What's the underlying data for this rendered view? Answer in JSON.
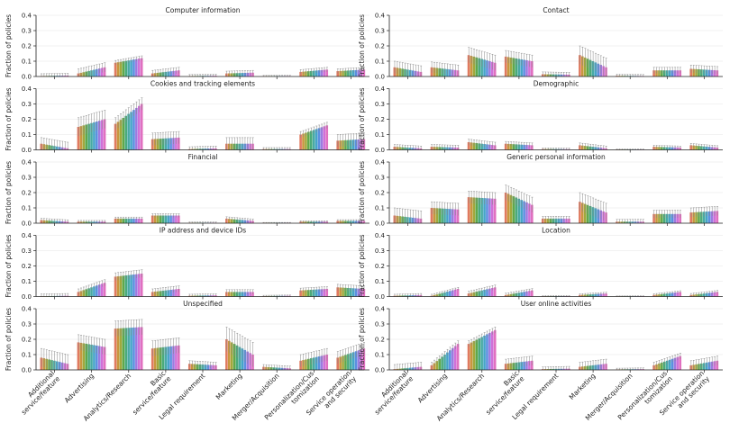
{
  "figure": {
    "ylabel": "Fraction of policies",
    "ylim": [
      0,
      0.4
    ],
    "yticks": [
      "0.0",
      "0.1",
      "0.2",
      "0.3",
      "0.4"
    ],
    "categories": [
      "Additional service/feature",
      "Advertising",
      "Analytics/Research",
      "Basic service/feature",
      "Legal requirement",
      "Marketing",
      "Merger/Acquisition",
      "Personalization/Customization",
      "Service operation and security"
    ],
    "category_tick_lines": [
      [
        "Additional",
        "service/feature"
      ],
      [
        "Advertising"
      ],
      [
        "Analytics/Research"
      ],
      [
        "Basic",
        "service/feature"
      ],
      [
        "Legal requirement"
      ],
      [
        "Marketing"
      ],
      [
        "Merger/Acquisition"
      ],
      [
        "Personalization/Cus",
        "tomization"
      ],
      [
        "Service operation",
        "and security"
      ]
    ],
    "series_colors": [
      "#e07a5f",
      "#c8963e",
      "#a0a83c",
      "#5fa84a",
      "#4aaa7a",
      "#48aaa4",
      "#45a4c8",
      "#5b8fe0",
      "#9c7be0",
      "#d070d8",
      "#e070c0"
    ]
  },
  "chart_data": [
    {
      "type": "bar",
      "title": "Computer information",
      "categories": [
        "Additional service/feature",
        "Advertising",
        "Analytics/Research",
        "Basic service/feature",
        "Legal requirement",
        "Marketing",
        "Merger/Acquisition",
        "Personalization/Customization",
        "Service operation and security"
      ],
      "start_values": [
        0.003,
        0.02,
        0.09,
        0.02,
        0.003,
        0.02,
        0.002,
        0.03,
        0.035
      ],
      "end_values": [
        0.006,
        0.06,
        0.12,
        0.04,
        0.005,
        0.025,
        0.003,
        0.045,
        0.045
      ],
      "err": [
        0.015,
        0.03,
        0.015,
        0.02,
        0.01,
        0.015,
        0.005,
        0.015,
        0.015
      ]
    },
    {
      "type": "bar",
      "title": "Contact",
      "categories": [
        "Additional service/feature",
        "Advertising",
        "Analytics/Research",
        "Basic service/feature",
        "Legal requirement",
        "Marketing",
        "Merger/Acquisition",
        "Personalization/Customization",
        "Service operation and security"
      ],
      "start_values": [
        0.06,
        0.06,
        0.14,
        0.13,
        0.015,
        0.14,
        0.005,
        0.04,
        0.05
      ],
      "end_values": [
        0.03,
        0.04,
        0.09,
        0.1,
        0.012,
        0.06,
        0.003,
        0.04,
        0.04
      ],
      "err": [
        0.04,
        0.035,
        0.05,
        0.04,
        0.015,
        0.06,
        0.01,
        0.02,
        0.025
      ]
    },
    {
      "type": "bar",
      "title": "Cookies and tracking elements",
      "categories": [
        "Additional service/feature",
        "Advertising",
        "Analytics/Research",
        "Basic service/feature",
        "Legal requirement",
        "Marketing",
        "Merger/Acquisition",
        "Personalization/Customization",
        "Service operation and security"
      ],
      "start_values": [
        0.04,
        0.15,
        0.17,
        0.07,
        0.005,
        0.04,
        0.005,
        0.1,
        0.06
      ],
      "end_values": [
        0.01,
        0.2,
        0.3,
        0.08,
        0.01,
        0.04,
        0.005,
        0.16,
        0.07
      ],
      "err": [
        0.04,
        0.06,
        0.04,
        0.04,
        0.015,
        0.04,
        0.01,
        0.02,
        0.04
      ]
    },
    {
      "type": "bar",
      "title": "Demographic",
      "categories": [
        "Additional service/feature",
        "Advertising",
        "Analytics/Research",
        "Basic service/feature",
        "Legal requirement",
        "Marketing",
        "Merger/Acquisition",
        "Personalization/Customization",
        "Service operation and security"
      ],
      "start_values": [
        0.02,
        0.02,
        0.05,
        0.04,
        0.005,
        0.03,
        0.002,
        0.02,
        0.03
      ],
      "end_values": [
        0.01,
        0.015,
        0.03,
        0.03,
        0.004,
        0.01,
        0.002,
        0.015,
        0.015
      ],
      "err": [
        0.015,
        0.015,
        0.02,
        0.015,
        0.008,
        0.015,
        0.004,
        0.01,
        0.012
      ]
    },
    {
      "type": "bar",
      "title": "Financial",
      "categories": [
        "Additional service/feature",
        "Advertising",
        "Analytics/Research",
        "Basic service/feature",
        "Legal requirement",
        "Marketing",
        "Merger/Acquisition",
        "Personalization/Customization",
        "Service operation and security"
      ],
      "start_values": [
        0.02,
        0.01,
        0.03,
        0.05,
        0.003,
        0.03,
        0.002,
        0.01,
        0.015
      ],
      "end_values": [
        0.01,
        0.01,
        0.03,
        0.05,
        0.003,
        0.015,
        0.002,
        0.01,
        0.015
      ],
      "err": [
        0.012,
        0.008,
        0.01,
        0.012,
        0.005,
        0.012,
        0.003,
        0.006,
        0.008
      ]
    },
    {
      "type": "bar",
      "title": "Generic personal information",
      "categories": [
        "Additional service/feature",
        "Advertising",
        "Analytics/Research",
        "Basic service/feature",
        "Legal requirement",
        "Marketing",
        "Merger/Acquisition",
        "Personalization/Customization",
        "Service operation and security"
      ],
      "start_values": [
        0.05,
        0.1,
        0.17,
        0.2,
        0.03,
        0.14,
        0.01,
        0.06,
        0.07
      ],
      "end_values": [
        0.03,
        0.09,
        0.16,
        0.12,
        0.03,
        0.07,
        0.01,
        0.06,
        0.08
      ],
      "err": [
        0.05,
        0.04,
        0.04,
        0.05,
        0.015,
        0.06,
        0.015,
        0.025,
        0.03
      ]
    },
    {
      "type": "bar",
      "title": "IP address and device IDs",
      "categories": [
        "Additional service/feature",
        "Advertising",
        "Analytics/Research",
        "Basic service/feature",
        "Legal requirement",
        "Marketing",
        "Merger/Acquisition",
        "Personalization/Customization",
        "Service operation and security"
      ],
      "start_values": [
        0.002,
        0.03,
        0.13,
        0.03,
        0.005,
        0.03,
        0.003,
        0.04,
        0.06
      ],
      "end_values": [
        0.005,
        0.09,
        0.15,
        0.05,
        0.008,
        0.03,
        0.005,
        0.05,
        0.05
      ],
      "err": [
        0.015,
        0.02,
        0.025,
        0.02,
        0.01,
        0.015,
        0.005,
        0.015,
        0.02
      ]
    },
    {
      "type": "bar",
      "title": "Location",
      "categories": [
        "Additional service/feature",
        "Advertising",
        "Analytics/Research",
        "Basic service/feature",
        "Legal requirement",
        "Marketing",
        "Merger/Acquisition",
        "Personalization/Customization",
        "Service operation and security"
      ],
      "start_values": [
        0.005,
        0.005,
        0.02,
        0.01,
        0.002,
        0.01,
        0.001,
        0.01,
        0.01
      ],
      "end_values": [
        0.01,
        0.05,
        0.06,
        0.04,
        0.003,
        0.02,
        0.002,
        0.03,
        0.03
      ],
      "err": [
        0.01,
        0.01,
        0.015,
        0.012,
        0.004,
        0.008,
        0.003,
        0.008,
        0.01
      ]
    },
    {
      "type": "bar",
      "title": "Unspecified",
      "categories": [
        "Additional service/feature",
        "Advertising",
        "Analytics/Research",
        "Basic service/feature",
        "Legal requirement",
        "Marketing",
        "Merger/Acquisition",
        "Personalization/Customization",
        "Service operation and security"
      ],
      "start_values": [
        0.08,
        0.18,
        0.27,
        0.14,
        0.04,
        0.2,
        0.02,
        0.06,
        0.08
      ],
      "end_values": [
        0.04,
        0.15,
        0.28,
        0.16,
        0.03,
        0.1,
        0.01,
        0.1,
        0.14
      ],
      "err": [
        0.06,
        0.05,
        0.05,
        0.05,
        0.02,
        0.08,
        0.015,
        0.04,
        0.04
      ]
    },
    {
      "type": "bar",
      "title": "User online activities",
      "categories": [
        "Additional service/feature",
        "Advertising",
        "Analytics/Research",
        "Basic service/feature",
        "Legal requirement",
        "Marketing",
        "Merger/Acquisition",
        "Personalization/Customization",
        "Service operation and security"
      ],
      "start_values": [
        0.005,
        0.03,
        0.17,
        0.04,
        0.005,
        0.02,
        0.003,
        0.03,
        0.03
      ],
      "end_values": [
        0.02,
        0.17,
        0.26,
        0.06,
        0.008,
        0.04,
        0.005,
        0.09,
        0.06
      ],
      "err": [
        0.03,
        0.02,
        0.02,
        0.03,
        0.015,
        0.03,
        0.008,
        0.02,
        0.03
      ]
    }
  ]
}
